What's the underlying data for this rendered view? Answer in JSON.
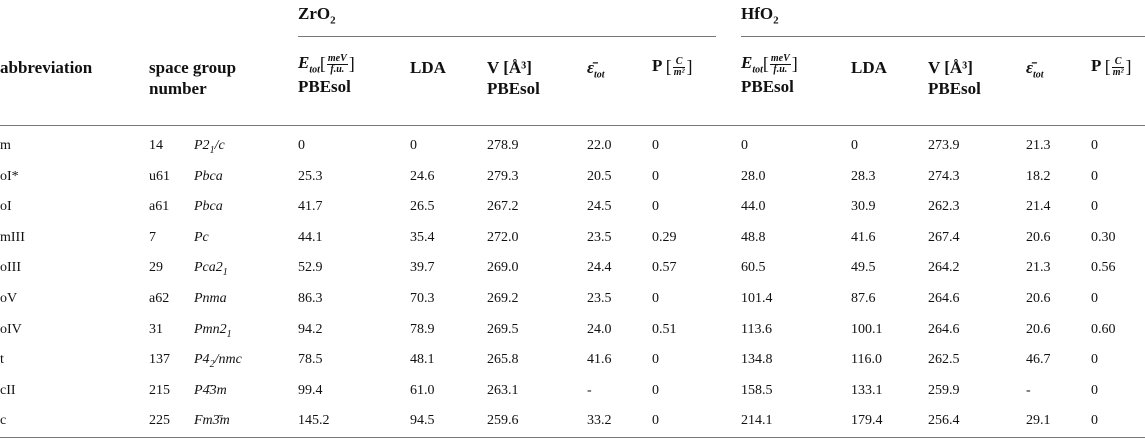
{
  "groups": {
    "zro2": {
      "base": "ZrO",
      "sub": "2"
    },
    "hfo2": {
      "base": "HfO",
      "sub": "2"
    }
  },
  "headers": {
    "abbreviation": "abbreviation",
    "space_group": "space group",
    "number": "number",
    "etot_unit_num": "meV",
    "etot_unit_den": "f.u.",
    "pbesol": "PBEsol",
    "lda": "LDA",
    "volume": "V",
    "volume_unit": "[Å³]",
    "epsilon": "ε̄",
    "epsilon_sub": "tot",
    "p": "P",
    "p_unit_num": "C",
    "p_unit_den": "m²"
  },
  "rows": [
    {
      "abbr": "m",
      "num": "14",
      "sg": [
        "P2",
        "1",
        "/c"
      ],
      "zr": [
        "0",
        "0",
        "278.9",
        "22.0",
        "0"
      ],
      "hf": [
        "0",
        "0",
        "273.9",
        "21.3",
        "0"
      ]
    },
    {
      "abbr": "oI*",
      "num": "u61",
      "sg": [
        "Pbca",
        "",
        ""
      ],
      "zr": [
        "25.3",
        "24.6",
        "279.3",
        "20.5",
        "0"
      ],
      "hf": [
        "28.0",
        "28.3",
        "274.3",
        "18.2",
        "0"
      ]
    },
    {
      "abbr": "oI",
      "num": "a61",
      "sg": [
        "Pbca",
        "",
        ""
      ],
      "zr": [
        "41.7",
        "26.5",
        "267.2",
        "24.5",
        "0"
      ],
      "hf": [
        "44.0",
        "30.9",
        "262.3",
        "21.4",
        "0"
      ]
    },
    {
      "abbr": "mIII",
      "num": "7",
      "sg": [
        "Pc",
        "",
        ""
      ],
      "zr": [
        "44.1",
        "35.4",
        "272.0",
        "23.5",
        "0.29"
      ],
      "hf": [
        "48.8",
        "41.6",
        "267.4",
        "20.6",
        "0.30"
      ]
    },
    {
      "abbr": "oIII",
      "num": "29",
      "sg": [
        "Pca2",
        "1",
        ""
      ],
      "zr": [
        "52.9",
        "39.7",
        "269.0",
        "24.4",
        "0.57"
      ],
      "hf": [
        "60.5",
        "49.5",
        "264.2",
        "21.3",
        "0.56"
      ]
    },
    {
      "abbr": "oV",
      "num": "a62",
      "sg": [
        "Pnma",
        "",
        ""
      ],
      "zr": [
        "86.3",
        "70.3",
        "269.2",
        "23.5",
        "0"
      ],
      "hf": [
        "101.4",
        "87.6",
        "264.6",
        "20.6",
        "0"
      ]
    },
    {
      "abbr": "oIV",
      "num": "31",
      "sg": [
        "Pmn2",
        "1",
        ""
      ],
      "zr": [
        "94.2",
        "78.9",
        "269.5",
        "24.0",
        "0.51"
      ],
      "hf": [
        "113.6",
        "100.1",
        "264.6",
        "20.6",
        "0.60"
      ]
    },
    {
      "abbr": "t",
      "num": "137",
      "sg": [
        "P4",
        "2",
        "/nmc"
      ],
      "zr": [
        "78.5",
        "48.1",
        "265.8",
        "41.6",
        "0"
      ],
      "hf": [
        "134.8",
        "116.0",
        "262.5",
        "46.7",
        "0"
      ]
    },
    {
      "abbr": "cII",
      "num": "215",
      "sg": [
        "P",
        "",
        "4̄3m"
      ],
      "zr": [
        "99.4",
        "61.0",
        "263.1",
        "-",
        "0"
      ],
      "hf": [
        "158.5",
        "133.1",
        "259.9",
        "-",
        "0"
      ]
    },
    {
      "abbr": "c",
      "num": "225",
      "sg": [
        "Fm",
        "",
        "3̄m"
      ],
      "zr": [
        "145.2",
        "94.5",
        "259.6",
        "33.2",
        "0"
      ],
      "hf": [
        "214.1",
        "179.4",
        "256.4",
        "29.1",
        "0"
      ]
    }
  ]
}
